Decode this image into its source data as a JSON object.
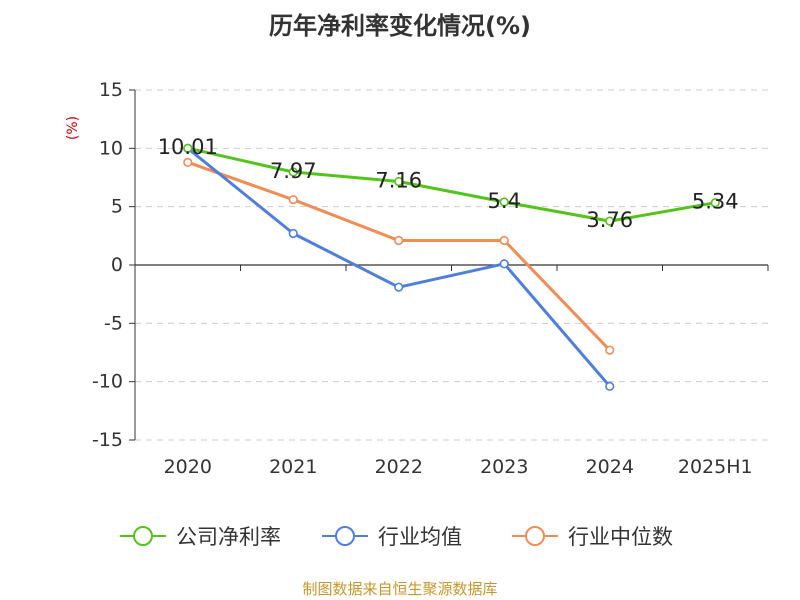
{
  "title": "历年净利率变化情况(%)",
  "source": "制图数据来自恒生聚源数据库",
  "chart_data": {
    "type": "line",
    "categories": [
      "2020",
      "2021",
      "2022",
      "2023",
      "2024",
      "2025H1"
    ],
    "ylabel": "(%)",
    "ylim": [
      -15,
      15
    ],
    "yticks": [
      15,
      10,
      5,
      0,
      -5,
      -10,
      -15
    ],
    "grid": true,
    "legend_position": "bottom",
    "series": [
      {
        "name": "公司净利率",
        "color": "#52c41a",
        "values": [
          10.01,
          7.97,
          7.16,
          5.4,
          3.76,
          5.34
        ],
        "labels": [
          "10.01",
          "7.97",
          "7.16",
          "5.4",
          "3.76",
          "5.34"
        ]
      },
      {
        "name": "行业均值",
        "color": "#4f7fdc",
        "values": [
          10.0,
          2.7,
          -1.9,
          0.1,
          -10.4,
          null
        ]
      },
      {
        "name": "行业中位数",
        "color": "#f28c55",
        "values": [
          8.8,
          5.6,
          2.1,
          2.1,
          -7.3,
          null
        ]
      }
    ]
  }
}
